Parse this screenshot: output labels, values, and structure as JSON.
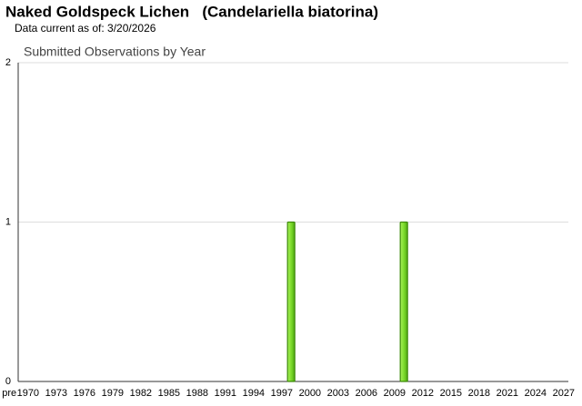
{
  "header": {
    "title": "Naked Goldspeck Lichen   (Candelariella biatorina)",
    "subtitle": "Data current as of: 3/20/2026"
  },
  "chart_data": {
    "type": "bar",
    "title": "Submitted Observations by Year",
    "categories": [
      "pre",
      null,
      "1970",
      null,
      null,
      "1973",
      null,
      null,
      "1976",
      null,
      null,
      "1979",
      null,
      null,
      "1982",
      null,
      null,
      "1985",
      null,
      null,
      "1988",
      null,
      null,
      "1991",
      null,
      null,
      "1994",
      null,
      null,
      "1997",
      null,
      null,
      "2000",
      null,
      null,
      "2003",
      null,
      null,
      "2006",
      null,
      null,
      "2009",
      null,
      null,
      "2012",
      null,
      null,
      "2015",
      null,
      null,
      "2018",
      null,
      null,
      "2021",
      null,
      null,
      "2024",
      null,
      null,
      "2027"
    ],
    "values": [
      0,
      0,
      0,
      0,
      0,
      0,
      0,
      0,
      0,
      0,
      0,
      0,
      0,
      0,
      0,
      0,
      0,
      0,
      0,
      0,
      0,
      0,
      0,
      0,
      0,
      0,
      0,
      0,
      0,
      0,
      1,
      0,
      0,
      0,
      0,
      0,
      0,
      0,
      0,
      0,
      0,
      0,
      1,
      0,
      0,
      0,
      0,
      0,
      0,
      0,
      0,
      0,
      0,
      0,
      0,
      0,
      0,
      0,
      0,
      0
    ],
    "color": "#7ddc2c",
    "ylim": [
      0,
      2
    ],
    "yticks": [
      0,
      1,
      2
    ],
    "grid": true
  }
}
